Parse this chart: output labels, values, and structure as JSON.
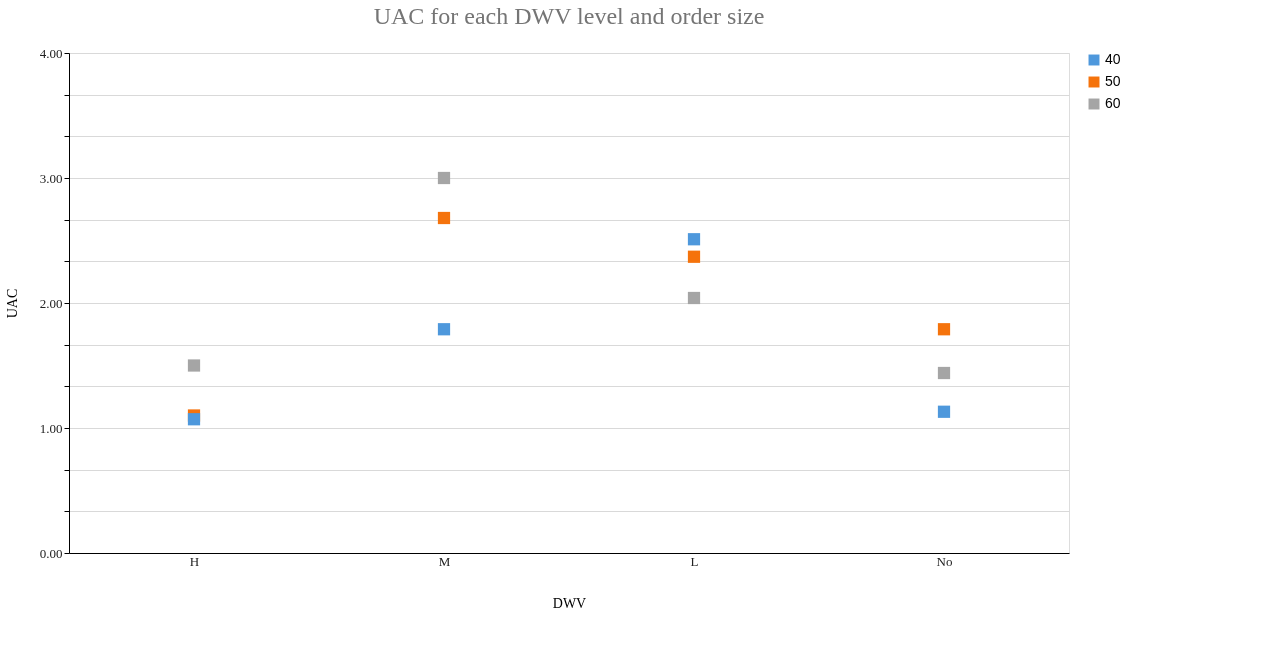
{
  "chart_data": {
    "type": "scatter",
    "title": "UAC for each DWV level and order size",
    "xlabel": "DWV",
    "ylabel": "UAC",
    "categories": [
      "H",
      "M",
      "L",
      "No"
    ],
    "series": [
      {
        "name": "40",
        "color": "#4e98dc",
        "values": [
          1.07,
          1.79,
          2.51,
          1.13
        ]
      },
      {
        "name": "50",
        "color": "#f5730c",
        "values": [
          1.1,
          2.68,
          2.37,
          1.79
        ]
      },
      {
        "name": "60",
        "color": "#a5a5a5",
        "values": [
          1.5,
          3.0,
          2.04,
          1.44
        ]
      }
    ],
    "ylim": [
      0,
      4
    ],
    "yticks": [
      {
        "value": 0,
        "label": "0.00"
      },
      {
        "value": 0.3333,
        "label": null
      },
      {
        "value": 0.6667,
        "label": null
      },
      {
        "value": 1,
        "label": "1.00"
      },
      {
        "value": 1.3333,
        "label": null
      },
      {
        "value": 1.6667,
        "label": null
      },
      {
        "value": 2,
        "label": "2.00"
      },
      {
        "value": 2.3333,
        "label": null
      },
      {
        "value": 2.6667,
        "label": null
      },
      {
        "value": 3,
        "label": "3.00"
      },
      {
        "value": 3.3333,
        "label": null
      },
      {
        "value": 3.6667,
        "label": null
      },
      {
        "value": 4,
        "label": "4.00"
      }
    ],
    "grid": "y",
    "legend": "right",
    "marker": "square"
  }
}
